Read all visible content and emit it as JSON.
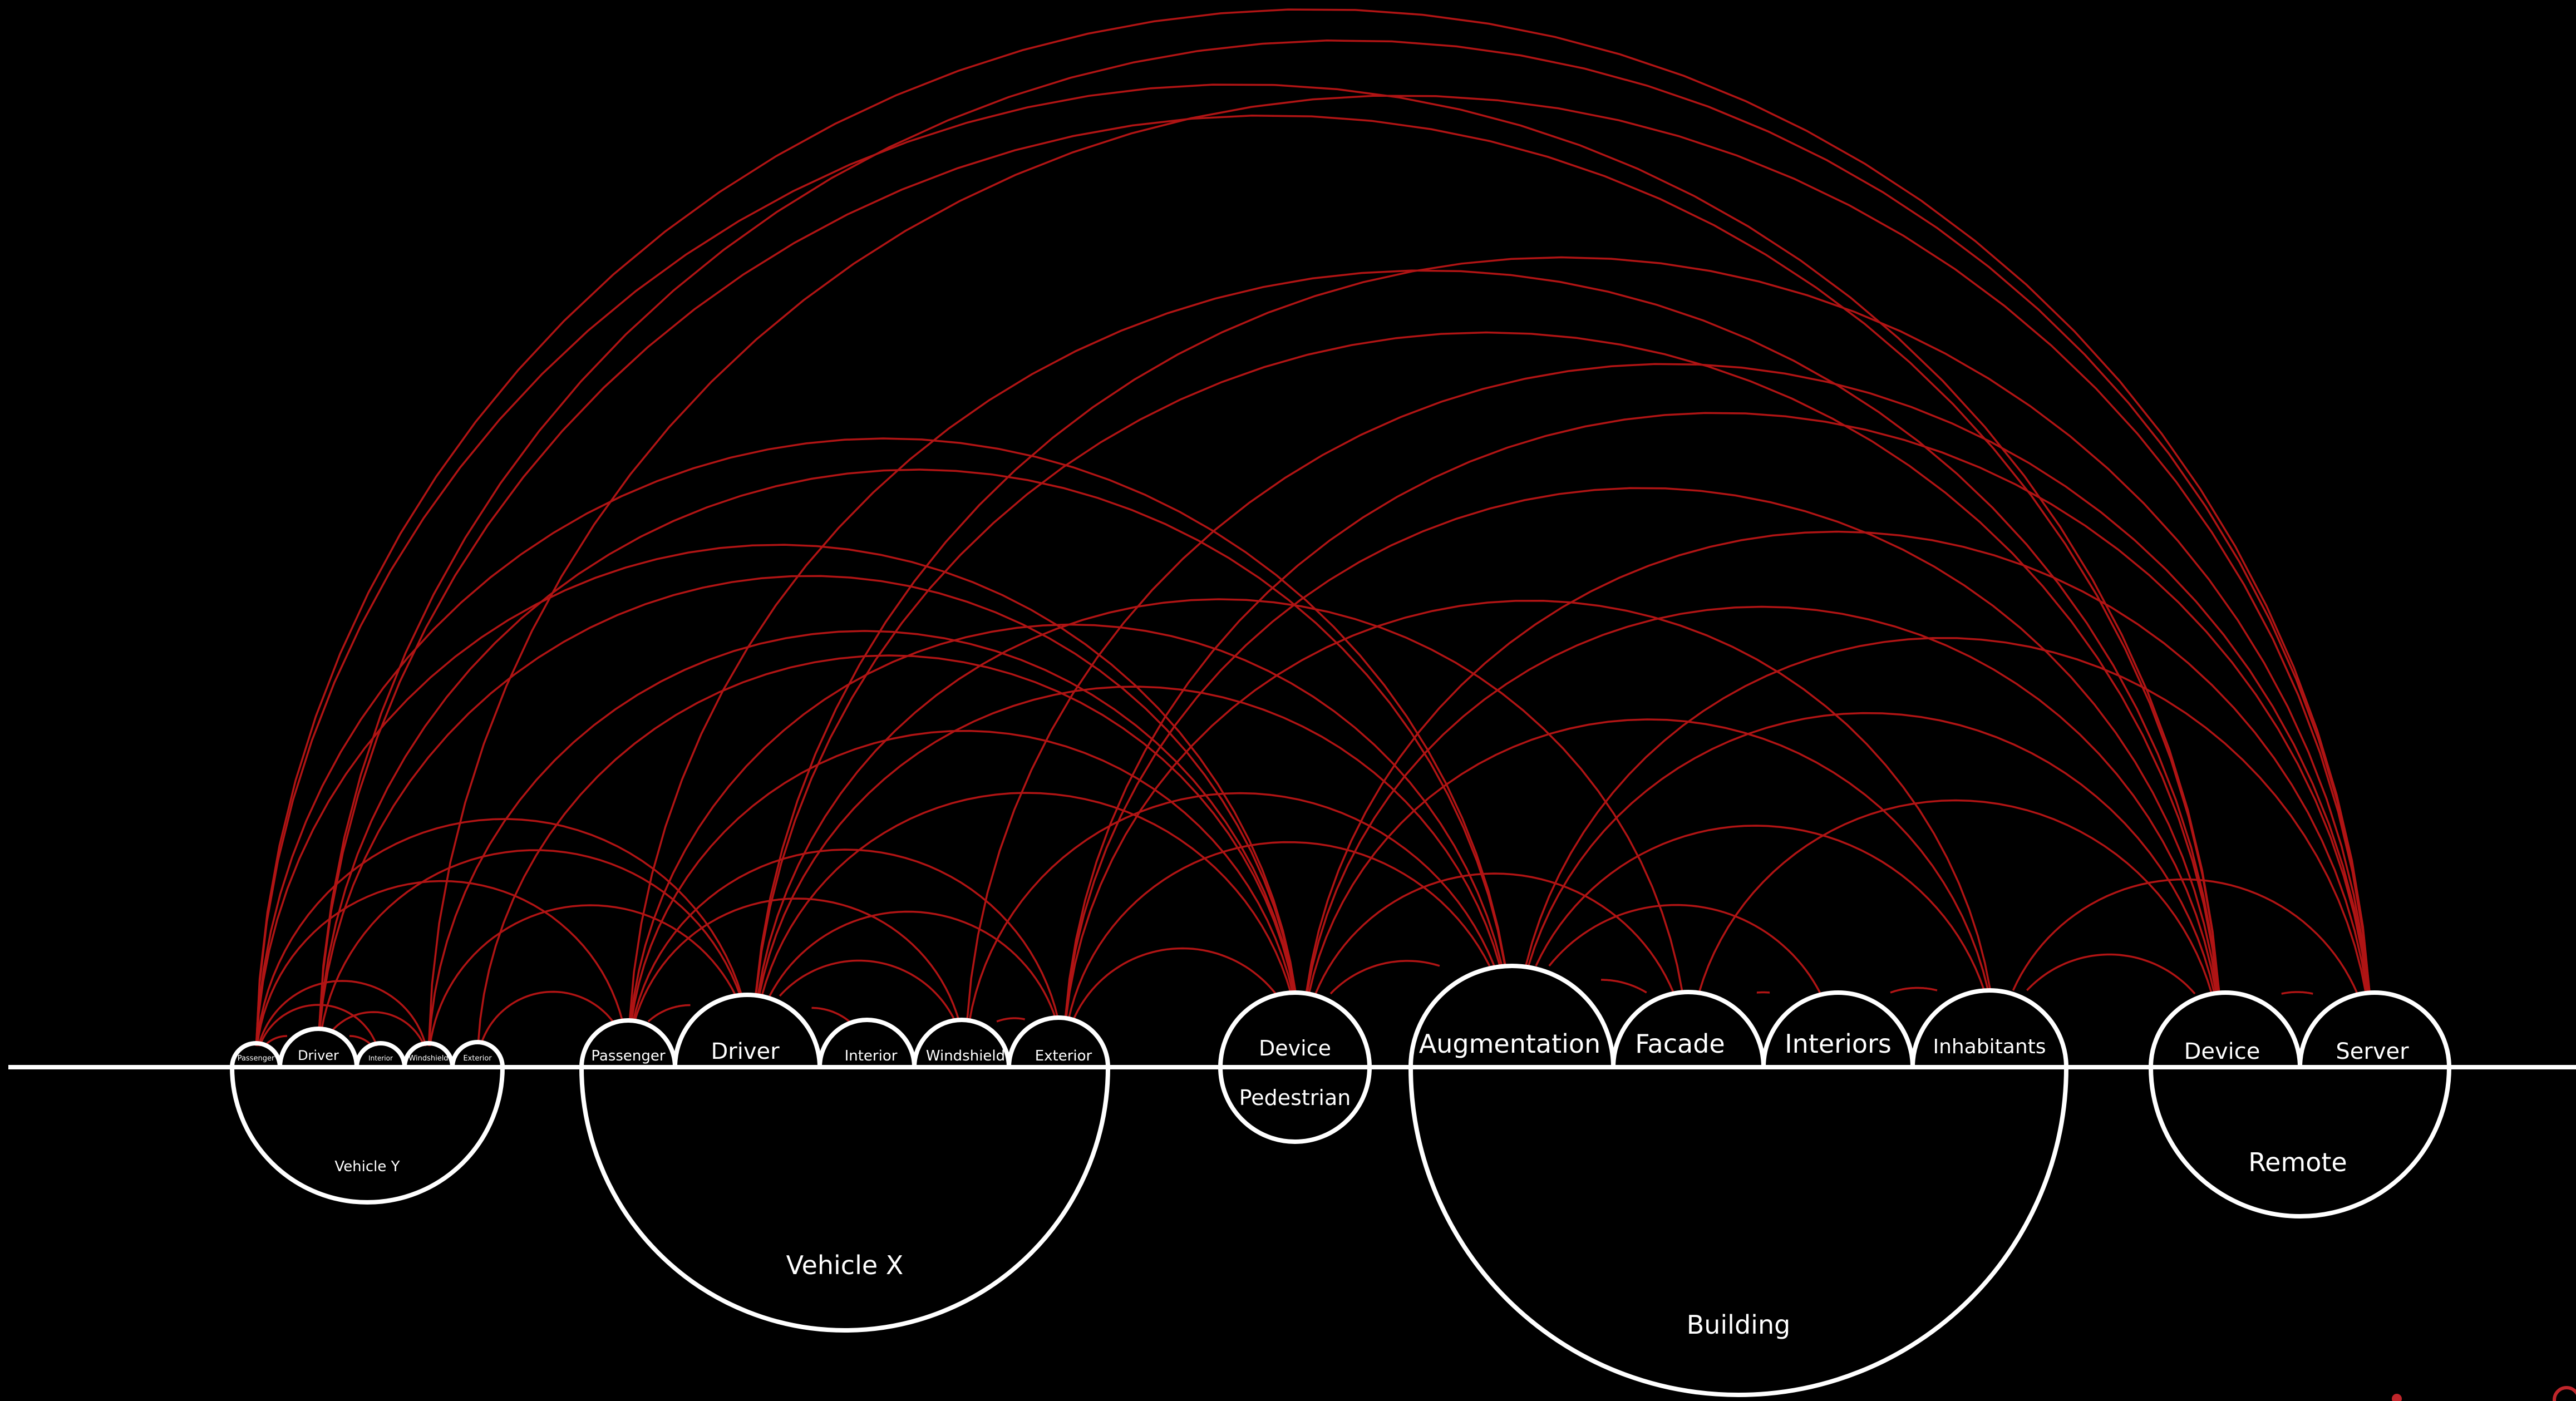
{
  "colors": {
    "background": "#000000",
    "outline": "#ffffff",
    "link": "#b01414",
    "logo": "#c0262b"
  },
  "groups": {
    "vehicle_y": {
      "label": "Vehicle Y",
      "parts": {
        "passenger": "Passenger",
        "driver": "Driver",
        "interior": "Interior",
        "windshield": "Windshield",
        "exterior": "Exterior"
      }
    },
    "vehicle_x": {
      "label": "Vehicle X",
      "parts": {
        "passenger": "Passenger",
        "driver": "Driver",
        "interior": "Interior",
        "windshield": "Windshield",
        "exterior": "Exterior"
      }
    },
    "pedestrian": {
      "label": "Pedestrian",
      "parts": {
        "device": "Device"
      }
    },
    "building": {
      "label": "Building",
      "parts": {
        "augmentation": "Augmentation",
        "facade": "Facade",
        "interiors": "Interiors",
        "inhabitants": "Inhabitants"
      }
    },
    "remote": {
      "label": "Remote",
      "parts": {
        "device": "Device",
        "server": "Server"
      }
    }
  },
  "links": [
    [
      "vy_passenger",
      "vy_driver"
    ],
    [
      "vy_passenger",
      "vy_interior"
    ],
    [
      "vy_passenger",
      "vy_windshield"
    ],
    [
      "vy_driver",
      "vy_interior"
    ],
    [
      "vy_driver",
      "vy_windshield"
    ],
    [
      "vy_passenger",
      "vx_passenger"
    ],
    [
      "vy_passenger",
      "vx_driver"
    ],
    [
      "vy_passenger",
      "ped_device"
    ],
    [
      "vy_passenger",
      "bld_augmentation"
    ],
    [
      "vy_passenger",
      "rem_device"
    ],
    [
      "vy_passenger",
      "rem_server"
    ],
    [
      "vy_driver",
      "vx_driver"
    ],
    [
      "vy_driver",
      "ped_device"
    ],
    [
      "vy_driver",
      "bld_augmentation"
    ],
    [
      "vy_driver",
      "rem_device"
    ],
    [
      "vy_driver",
      "rem_server"
    ],
    [
      "vy_windshield",
      "vx_driver"
    ],
    [
      "vy_windshield",
      "ped_device"
    ],
    [
      "vy_windshield",
      "rem_server"
    ],
    [
      "vy_exterior",
      "vx_passenger"
    ],
    [
      "vy_exterior",
      "ped_device"
    ],
    [
      "vx_passenger",
      "vx_driver"
    ],
    [
      "vx_passenger",
      "vx_windshield"
    ],
    [
      "vx_passenger",
      "vx_exterior"
    ],
    [
      "vx_passenger",
      "ped_device"
    ],
    [
      "vx_passenger",
      "bld_augmentation"
    ],
    [
      "vx_passenger",
      "rem_device"
    ],
    [
      "vx_driver",
      "vx_interior"
    ],
    [
      "vx_driver",
      "vx_windshield"
    ],
    [
      "vx_driver",
      "vx_exterior"
    ],
    [
      "vx_driver",
      "ped_device"
    ],
    [
      "vx_driver",
      "bld_augmentation"
    ],
    [
      "vx_driver",
      "bld_facade"
    ],
    [
      "vx_driver",
      "rem_device"
    ],
    [
      "vx_driver",
      "rem_server"
    ],
    [
      "vx_windshield",
      "vx_exterior"
    ],
    [
      "vx_windshield",
      "bld_augmentation"
    ],
    [
      "vx_windshield",
      "rem_server"
    ],
    [
      "vx_exterior",
      "ped_device"
    ],
    [
      "vx_exterior",
      "bld_augmentation"
    ],
    [
      "vx_exterior",
      "bld_inhabitants"
    ],
    [
      "vx_exterior",
      "rem_device"
    ],
    [
      "vx_exterior",
      "rem_server"
    ],
    [
      "ped_device",
      "bld_augmentation"
    ],
    [
      "ped_device",
      "bld_facade"
    ],
    [
      "ped_device",
      "bld_inhabitants"
    ],
    [
      "ped_device",
      "rem_device"
    ],
    [
      "ped_device",
      "rem_server"
    ],
    [
      "bld_augmentation",
      "bld_facade"
    ],
    [
      "bld_augmentation",
      "bld_interiors"
    ],
    [
      "bld_augmentation",
      "bld_inhabitants"
    ],
    [
      "bld_augmentation",
      "rem_device"
    ],
    [
      "bld_augmentation",
      "rem_server"
    ],
    [
      "bld_facade",
      "bld_interiors"
    ],
    [
      "bld_interiors",
      "bld_inhabitants"
    ],
    [
      "bld_facade",
      "rem_device"
    ],
    [
      "bld_inhabitants",
      "rem_device"
    ],
    [
      "bld_inhabitants",
      "rem_server"
    ],
    [
      "rem_device",
      "rem_server"
    ]
  ]
}
